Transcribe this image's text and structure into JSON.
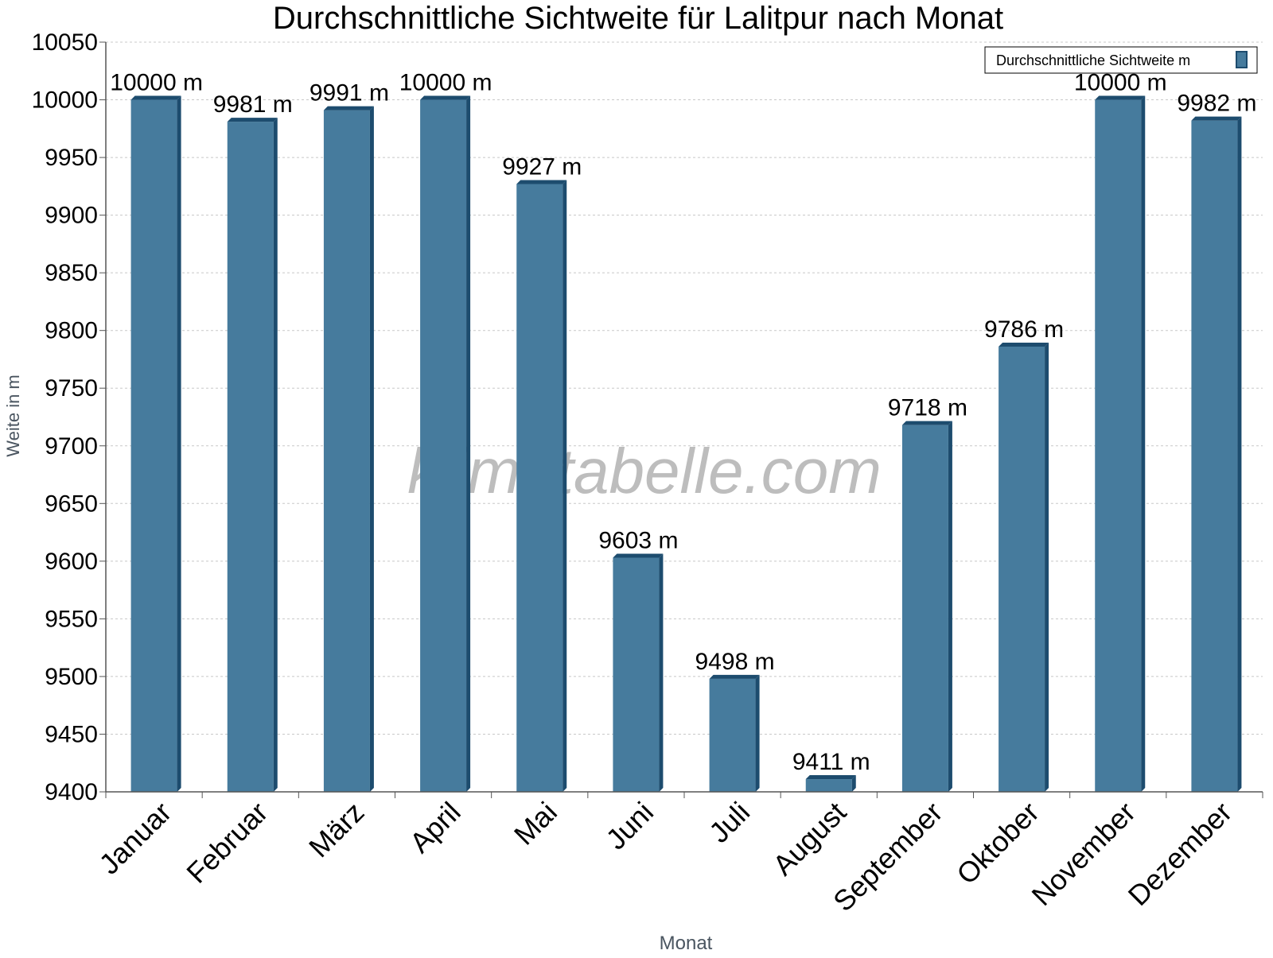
{
  "chart_data": {
    "type": "bar",
    "title": "Durchschnittliche Sichtweite für Lalitpur nach Monat",
    "xlabel": "Monat",
    "ylabel": "Weite in m",
    "categories": [
      "Januar",
      "Februar",
      "März",
      "April",
      "Mai",
      "Juni",
      "Juli",
      "August",
      "September",
      "Oktober",
      "November",
      "Dezember"
    ],
    "series": [
      {
        "name": "Durchschnittliche Sichtweite m",
        "values": [
          10000,
          9981,
          9991,
          10000,
          9927,
          9603,
          9498,
          9411,
          9718,
          9786,
          10000,
          9982
        ]
      }
    ],
    "data_labels": [
      "10000 m",
      "9981 m",
      "9991 m",
      "10000 m",
      "9927 m",
      "9603 m",
      "9498 m",
      "9411 m",
      "9718 m",
      "9786 m",
      "10000 m",
      "9982 m"
    ],
    "yticks": [
      9400,
      9450,
      9500,
      9550,
      9600,
      9650,
      9700,
      9750,
      9800,
      9850,
      9900,
      9950,
      10000,
      10050
    ],
    "ylim": [
      9400,
      10050
    ],
    "grid": true,
    "legend_position": "top-right",
    "watermark": "klimatabelle.com",
    "colors": {
      "bar_front": "#467b9d",
      "bar_side": "#1d4c6e",
      "bar_top": "#1d4c6e",
      "grid": "#c8c8c8",
      "axis": "#555555",
      "axis_title": "#4a5560",
      "watermark": "#bdbdbd"
    }
  }
}
